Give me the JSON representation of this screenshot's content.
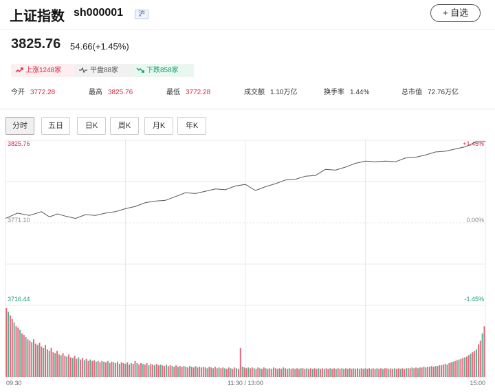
{
  "header": {
    "name": "上证指数",
    "code": "sh000001",
    "market": "沪",
    "fav_label": "+ 自选"
  },
  "quote": {
    "price": "3825.76",
    "change": "54.66(+1.45%)"
  },
  "breadth": {
    "up": "上涨1248家",
    "flat": "平盘88家",
    "down": "下跌858家"
  },
  "stats": [
    {
      "label": "今开",
      "value": "3772.28"
    },
    {
      "label": "最高",
      "value": "3825.76"
    },
    {
      "label": "最低",
      "value": "3772.28"
    },
    {
      "label": "成交额",
      "value": "1.10万亿"
    },
    {
      "label": "换手率",
      "value": "1.44%"
    },
    {
      "label": "总市值",
      "value": "72.76万亿"
    }
  ],
  "tabs": [
    "分时",
    "五日",
    "日K",
    "周K",
    "月K",
    "年K"
  ],
  "colors": {
    "up": "#e2233e",
    "down": "#119a6c",
    "line": "#555555",
    "grid": "#e8e8e8"
  },
  "chart_data": {
    "type": "line",
    "title": "",
    "y_left_labels": [
      "3825.76",
      "3771.10",
      "3716.44"
    ],
    "y_right_labels": [
      "+1.45%",
      "0.00%",
      "-1.45%"
    ],
    "x_labels": [
      "09:30",
      "11:30 / 13:00",
      "15:00"
    ],
    "ylim": [
      3716.44,
      3825.76
    ],
    "base": 3771.1,
    "price_series": {
      "x_index": [
        0,
        6,
        12,
        18,
        22,
        26,
        30,
        35,
        40,
        45,
        50,
        55,
        60,
        65,
        70,
        75,
        80,
        85,
        90,
        95,
        100,
        105,
        110,
        115,
        120,
        125,
        130,
        135,
        140,
        145,
        150,
        155,
        160,
        165,
        170,
        175,
        180,
        185,
        190,
        195,
        200,
        205,
        210,
        215,
        220,
        225,
        230,
        235,
        240
      ],
      "values": [
        3774.0,
        3777.5,
        3776.0,
        3778.5,
        3775.0,
        3777.0,
        3775.5,
        3774.0,
        3776.5,
        3776.0,
        3777.5,
        3778.5,
        3780.5,
        3782.0,
        3784.5,
        3785.5,
        3786.0,
        3788.5,
        3791.0,
        3790.5,
        3792.0,
        3793.5,
        3793.0,
        3795.5,
        3796.5,
        3792.5,
        3795.0,
        3797.0,
        3799.5,
        3800.0,
        3802.0,
        3802.5,
        3806.5,
        3806.0,
        3808.0,
        3810.5,
        3812.0,
        3811.5,
        3812.0,
        3811.5,
        3814.0,
        3814.5,
        3816.0,
        3818.0,
        3818.5,
        3820.0,
        3821.5,
        3824.5,
        3825.0
      ]
    },
    "volume_series": {
      "values": [
        95,
        90,
        85,
        80,
        75,
        70,
        68,
        65,
        60,
        58,
        55,
        52,
        50,
        48,
        52,
        46,
        44,
        47,
        42,
        40,
        44,
        38,
        36,
        40,
        34,
        33,
        36,
        31,
        30,
        33,
        29,
        28,
        31,
        27,
        26,
        29,
        25,
        27,
        24,
        26,
        23,
        25,
        22,
        24,
        22,
        23,
        21,
        22,
        20,
        22,
        21,
        20,
        22,
        19,
        21,
        20,
        19,
        21,
        18,
        20,
        19,
        18,
        20,
        17,
        19,
        18,
        22,
        19,
        17,
        19,
        18,
        17,
        19,
        16,
        18,
        17,
        16,
        18,
        16,
        17,
        16,
        15,
        17,
        15,
        16,
        15,
        14,
        16,
        14,
        15,
        14,
        15,
        14,
        13,
        15,
        14,
        13,
        15,
        13,
        14,
        13,
        14,
        13,
        12,
        14,
        13,
        12,
        14,
        12,
        13,
        12,
        13,
        12,
        11,
        13,
        12,
        11,
        13,
        12,
        11,
        40,
        14,
        13,
        12,
        13,
        12,
        13,
        12,
        11,
        13,
        12,
        11,
        13,
        12,
        11,
        12,
        11,
        13,
        12,
        11,
        12,
        11,
        13,
        12,
        11,
        12,
        11,
        12,
        11,
        12,
        11,
        12,
        12,
        11,
        12,
        11,
        12,
        11,
        12,
        11,
        12,
        11,
        12,
        11,
        12,
        11,
        12,
        11,
        12,
        11,
        12,
        11,
        12,
        11,
        12,
        11,
        12,
        11,
        12,
        11,
        12,
        11,
        12,
        11,
        12,
        11,
        12,
        11,
        12,
        11,
        12,
        11,
        12,
        11,
        12,
        12,
        11,
        12,
        11,
        12,
        11,
        12,
        11,
        12,
        11,
        12,
        12,
        12,
        13,
        12,
        13,
        12,
        13,
        13,
        14,
        13,
        14,
        14,
        15,
        14,
        15,
        15,
        16,
        16,
        17,
        18,
        17,
        19,
        20,
        21,
        22,
        23,
        24,
        25,
        26,
        27,
        28,
        30,
        32,
        34,
        36,
        38,
        45,
        50,
        60,
        70
      ]
    }
  }
}
